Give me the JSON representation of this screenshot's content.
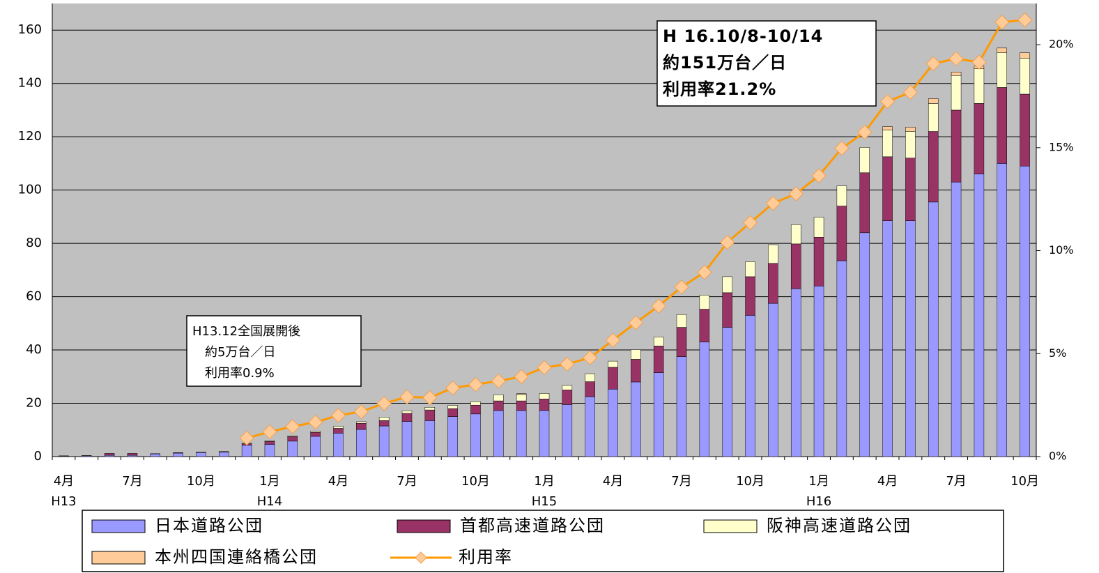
{
  "chart_data": {
    "type": "bar",
    "categories": [
      "4月",
      null,
      null,
      "7月",
      null,
      null,
      "10月",
      null,
      null,
      "1月",
      null,
      null,
      "4月",
      null,
      null,
      "7月",
      null,
      null,
      "10月",
      null,
      null,
      "1月",
      null,
      null,
      "4月",
      null,
      null,
      "7月",
      null,
      null,
      "10月",
      null,
      null,
      "1月",
      null,
      null,
      "4月",
      null,
      null,
      "7月",
      null,
      null,
      "10月"
    ],
    "category_groups": [
      "H13",
      null,
      null,
      null,
      null,
      null,
      null,
      null,
      null,
      "H14",
      null,
      null,
      null,
      null,
      null,
      null,
      null,
      null,
      null,
      null,
      null,
      "H15",
      null,
      null,
      null,
      null,
      null,
      null,
      null,
      null,
      null,
      null,
      null,
      "H16",
      null,
      null,
      null,
      null,
      null,
      null,
      null,
      null,
      null
    ],
    "ylim": [
      0,
      170
    ],
    "yticks": [
      0,
      20,
      40,
      60,
      80,
      100,
      120,
      140,
      160
    ],
    "y2lim": [
      0,
      22
    ],
    "y2ticks": [
      {
        "value": 0,
        "label": "0%"
      },
      {
        "value": 5,
        "label": "5%"
      },
      {
        "value": 10,
        "label": "10%"
      },
      {
        "value": 15,
        "label": "15%"
      },
      {
        "value": 20,
        "label": "20%"
      }
    ],
    "grid": true,
    "series": [
      {
        "name": "日本道路公団",
        "color": "#9999ff",
        "values": [
          0.2,
          0.3,
          0.5,
          0.5,
          1.0,
          1.3,
          1.5,
          1.7,
          4.3,
          4.6,
          5.8,
          7.6,
          8.8,
          10.2,
          11.5,
          13.2,
          13.5,
          15,
          16,
          17.3,
          17.3,
          17.3,
          19.5,
          22.5,
          25.3,
          28,
          31.5,
          37.5,
          43,
          48.5,
          53,
          57.5,
          63,
          64,
          73.5,
          84,
          88.5,
          88.5,
          95.5,
          103,
          106,
          110,
          109
        ]
      },
      {
        "name": "首都高速道路公団",
        "color": "#993366",
        "values": [
          0.1,
          0.1,
          0.7,
          0.7,
          0.1,
          0.2,
          0.2,
          0.2,
          0.5,
          1.1,
          1.7,
          1.5,
          1.8,
          2.3,
          2,
          3,
          4,
          3,
          3.3,
          3.6,
          3.6,
          4.3,
          5.5,
          5.6,
          8.2,
          8.5,
          10,
          11,
          12.3,
          13,
          14.5,
          15,
          16.8,
          18.3,
          20.5,
          22.5,
          24,
          23.5,
          26.5,
          27,
          26.5,
          28.5,
          27
        ]
      },
      {
        "name": "阪神高速道路公団",
        "color": "#ffffcc",
        "values": [
          0,
          0,
          0,
          0,
          0,
          0,
          0,
          0,
          0.2,
          0.2,
          0.3,
          0.4,
          0.8,
          0.6,
          1.3,
          1,
          1,
          1.2,
          1.3,
          2.3,
          2.4,
          2.1,
          1.7,
          3,
          2.3,
          3.6,
          3.4,
          4.8,
          5.3,
          6,
          5.6,
          7,
          7.2,
          7.5,
          7.6,
          9.5,
          10,
          10,
          10.5,
          13,
          13,
          13,
          13.5
        ]
      },
      {
        "name": "本州四国連絡橋公団",
        "color": "#ffcc99",
        "values": [
          0,
          0,
          0,
          0,
          0,
          0,
          0,
          0,
          0,
          0,
          0,
          0,
          0,
          0,
          0,
          0,
          0,
          0,
          0,
          0,
          0.3,
          0,
          0,
          0,
          0,
          0,
          0,
          0,
          0,
          0,
          0,
          0,
          0,
          0,
          0,
          0,
          1.3,
          1.6,
          1.8,
          1.3,
          1,
          1.8,
          2
        ]
      },
      {
        "name": "利用率",
        "type": "line",
        "axis": "y2",
        "color": "#ff9900",
        "marker_color": "#ffcc99",
        "values": [
          null,
          null,
          null,
          null,
          null,
          null,
          null,
          null,
          0.9,
          1.2,
          1.46,
          1.67,
          2.0,
          2.18,
          2.58,
          2.9,
          2.86,
          3.33,
          3.5,
          3.67,
          3.88,
          4.32,
          4.49,
          4.8,
          5.65,
          6.5,
          7.31,
          8.23,
          8.95,
          10.4,
          11.36,
          12.3,
          12.76,
          13.64,
          14.97,
          15.75,
          17.24,
          17.69,
          19.08,
          19.32,
          19.15,
          21.09,
          21.2
        ]
      }
    ],
    "annotations": [
      {
        "lines": [
          "H 16.10/8-10/14",
          "約151万台／日",
          "利用率21.2%"
        ]
      },
      {
        "lines": [
          "H13.12全国展開後",
          "約5万台／日",
          "利用率0.9%"
        ]
      }
    ]
  }
}
